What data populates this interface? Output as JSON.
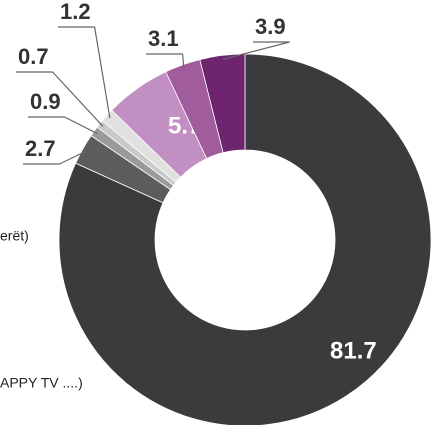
{
  "chart_data": {
    "type": "donut",
    "values": [
      81.7,
      2.7,
      0.9,
      0.7,
      1.2,
      5.7,
      3.1,
      3.9
    ],
    "colors": [
      "#3b3b3d",
      "#5c5c5e",
      "#9a9a9a",
      "#c9c9c9",
      "#e0e0e0",
      "#c28fc2",
      "#a05c9c",
      "#6f2470"
    ],
    "annotations": [
      "erët)",
      "APPY TV ....)"
    ]
  }
}
